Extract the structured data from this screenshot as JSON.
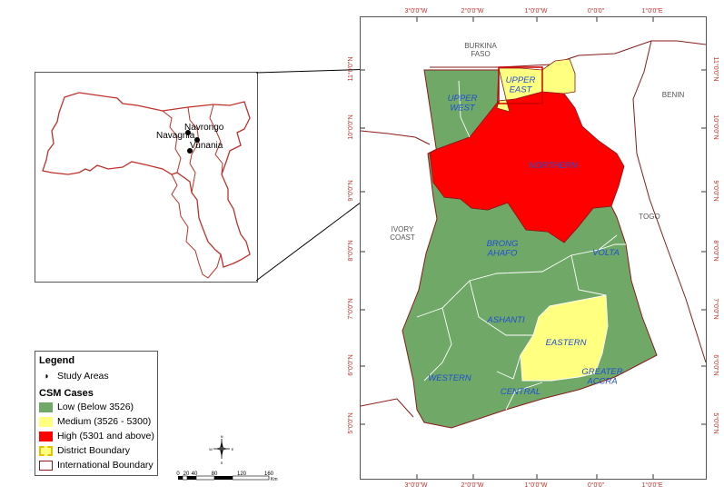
{
  "inset": {
    "places": [
      "Navrongo",
      "Navagnia",
      "Vunania"
    ]
  },
  "map": {
    "countries": [
      "BURKINA\nFASO",
      "BENIN",
      "TOGO",
      "IVORY\nCOAST"
    ],
    "regions": {
      "upper_west": "UPPER\nWEST",
      "upper_east": "UPPER\nEAST",
      "northern": "NORTHERN",
      "brong_ahafo": "BRONG\nAHAFO",
      "volta": "VOLTA",
      "ashanti": "ASHANTI",
      "eastern": "EASTERN",
      "western": "WESTERN",
      "central": "CENTRAL",
      "greater_accra": "GREATER\nACCRA"
    },
    "lon_ticks": [
      "3°0'0\"W",
      "2°0'0\"W",
      "1°0'0\"W",
      "0°0'0\"",
      "1°0'0\"E"
    ],
    "lat_ticks": [
      "11°0'0\"N",
      "10°0'0\"N",
      "9°0'0\"N",
      "8°0'0\"N",
      "7°0'0\"N",
      "6°0'0\"N",
      "5°0'0\"N"
    ]
  },
  "legend": {
    "title": "Legend",
    "study_areas": "Study Areas",
    "cases_title": "CSM Cases",
    "classes": [
      {
        "label": "Low (Below  3526)",
        "color": "#70a867"
      },
      {
        "label": "Medium (3526 - 5300)",
        "color": "#ffff80"
      },
      {
        "label": "High (5301 and above)",
        "color": "#ff0000"
      }
    ],
    "district_boundary": "District Boundary",
    "international_boundary": "International Boundary",
    "boundary_color": "#8b1a1a",
    "district_color": "#e8c200"
  },
  "scale": {
    "ticks": [
      "0",
      "20",
      "40",
      "80",
      "120",
      "160"
    ],
    "unit": "Km"
  },
  "north_arrow": {
    "n": "N",
    "s": "S",
    "e": "E",
    "w": "W"
  }
}
